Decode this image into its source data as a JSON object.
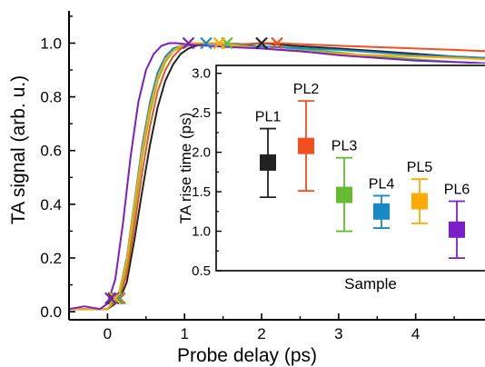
{
  "chart_data": [
    {
      "type": "line",
      "xlabel": "Probe delay (ps)",
      "ylabel": "TA signal (arb. u.)",
      "xlim": [
        -0.5,
        4.9
      ],
      "ylim": [
        -0.03,
        1.12
      ],
      "xticks": [
        0,
        1,
        2,
        3,
        4
      ],
      "yticks": [
        0.0,
        0.2,
        0.4,
        0.6,
        0.8,
        1.0
      ],
      "xtick_labels": [
        "0",
        "1",
        "2",
        "3",
        "4"
      ],
      "ytick_labels": [
        "0.0",
        "0.2",
        "0.4",
        "0.6",
        "0.8",
        "1.0"
      ],
      "grid": false,
      "series": [
        {
          "color": "#222222",
          "x": [
            -0.5,
            -0.2,
            0.0,
            0.15,
            0.25,
            0.35,
            0.45,
            0.55,
            0.65,
            0.75,
            0.85,
            0.95,
            1.05,
            1.15,
            1.3,
            1.5,
            1.8,
            2.0,
            2.4,
            3.0,
            3.5,
            4.0,
            4.5,
            4.9
          ],
          "y": [
            0.01,
            0.01,
            0.01,
            0.04,
            0.11,
            0.27,
            0.45,
            0.62,
            0.76,
            0.86,
            0.92,
            0.96,
            0.98,
            0.99,
            1.0,
            1.0,
            0.995,
            1.0,
            0.99,
            0.98,
            0.97,
            0.96,
            0.95,
            0.945
          ],
          "markers": [
            {
              "x": 2.0,
              "y": 1.0
            },
            {
              "x": 0.08,
              "y": 0.05
            }
          ]
        },
        {
          "color": "#f05020",
          "x": [
            -0.5,
            -0.2,
            0.0,
            0.15,
            0.25,
            0.35,
            0.45,
            0.55,
            0.65,
            0.75,
            0.85,
            0.95,
            1.05,
            1.2,
            1.4,
            1.7,
            2.0,
            2.2,
            2.6,
            3.0,
            3.5,
            4.0,
            4.5,
            4.9
          ],
          "y": [
            0.01,
            0.01,
            0.01,
            0.05,
            0.14,
            0.32,
            0.52,
            0.69,
            0.82,
            0.9,
            0.95,
            0.98,
            0.99,
            1.0,
            1.0,
            0.995,
            1.0,
            1.0,
            0.995,
            0.99,
            0.985,
            0.98,
            0.975,
            0.97
          ],
          "markers": [
            {
              "x": 2.2,
              "y": 1.0
            },
            {
              "x": 0.16,
              "y": 0.05
            }
          ]
        },
        {
          "color": "#66bb33",
          "x": [
            -0.5,
            -0.2,
            0.0,
            0.15,
            0.25,
            0.35,
            0.45,
            0.55,
            0.65,
            0.75,
            0.85,
            0.95,
            1.05,
            1.2,
            1.4,
            1.55,
            1.8,
            2.2,
            2.6,
            3.0,
            3.5,
            4.0,
            4.5,
            4.9
          ],
          "y": [
            0.01,
            0.01,
            0.01,
            0.06,
            0.17,
            0.37,
            0.58,
            0.74,
            0.86,
            0.93,
            0.97,
            0.985,
            0.99,
            1.0,
            1.0,
            1.0,
            0.99,
            0.985,
            0.975,
            0.965,
            0.95,
            0.94,
            0.93,
            0.925
          ],
          "markers": [
            {
              "x": 1.55,
              "y": 1.0
            },
            {
              "x": 0.14,
              "y": 0.05
            }
          ]
        },
        {
          "color": "#1888c8",
          "x": [
            -0.5,
            -0.2,
            0.0,
            0.15,
            0.25,
            0.35,
            0.45,
            0.55,
            0.65,
            0.75,
            0.85,
            0.95,
            1.1,
            1.25,
            1.5,
            1.8,
            2.2,
            2.6,
            3.0,
            3.5,
            4.0,
            4.5,
            4.9
          ],
          "y": [
            0.01,
            0.01,
            0.01,
            0.07,
            0.2,
            0.41,
            0.62,
            0.78,
            0.89,
            0.95,
            0.98,
            0.99,
            1.0,
            1.0,
            0.995,
            0.99,
            0.985,
            0.98,
            0.975,
            0.965,
            0.955,
            0.95,
            0.945
          ],
          "markers": [
            {
              "x": 1.28,
              "y": 1.0
            },
            {
              "x": 0.12,
              "y": 0.05
            }
          ]
        },
        {
          "color": "#ffaa00",
          "x": [
            -0.5,
            -0.2,
            0.0,
            0.15,
            0.25,
            0.35,
            0.45,
            0.55,
            0.65,
            0.75,
            0.85,
            0.95,
            1.1,
            1.3,
            1.45,
            1.7,
            2.0,
            2.4,
            3.0,
            3.5,
            4.0,
            4.5,
            4.9
          ],
          "y": [
            0.01,
            0.01,
            0.01,
            0.07,
            0.19,
            0.4,
            0.6,
            0.76,
            0.87,
            0.94,
            0.97,
            0.99,
            1.0,
            1.0,
            1.0,
            0.99,
            0.98,
            0.97,
            0.96,
            0.955,
            0.95,
            0.945,
            0.94
          ],
          "markers": [
            {
              "x": 1.45,
              "y": 1.0
            },
            {
              "x": 0.1,
              "y": 0.05
            }
          ]
        },
        {
          "color": "#7a1fc8",
          "x": [
            -0.5,
            -0.3,
            -0.1,
            0.0,
            0.1,
            0.2,
            0.3,
            0.4,
            0.5,
            0.6,
            0.7,
            0.8,
            0.9,
            1.05,
            1.3,
            1.6,
            2.0,
            2.5,
            3.0,
            3.5,
            4.0,
            4.5,
            4.9
          ],
          "y": [
            0.01,
            0.02,
            0.01,
            0.03,
            0.12,
            0.33,
            0.58,
            0.78,
            0.9,
            0.96,
            0.99,
            1.0,
            1.0,
            0.995,
            0.99,
            0.985,
            0.98,
            0.97,
            0.955,
            0.945,
            0.935,
            0.93,
            0.925
          ],
          "markers": [
            {
              "x": 1.05,
              "y": 1.0
            },
            {
              "x": 0.04,
              "y": 0.05
            }
          ]
        }
      ]
    },
    {
      "type": "scatter",
      "xlabel": "Sample",
      "ylabel": "TA rise time (ps)",
      "ylim": [
        0.5,
        3.1
      ],
      "yticks": [
        0.5,
        1.0,
        1.5,
        2.0,
        2.5,
        3.0
      ],
      "ytick_labels": [
        "0.5",
        "1.0",
        "1.5",
        "2.0",
        "2.5",
        "3.0"
      ],
      "categories": [
        "PL1",
        "PL2",
        "PL3",
        "PL4",
        "PL5",
        "PL6"
      ],
      "values": [
        1.87,
        2.08,
        1.46,
        1.25,
        1.38,
        1.02
      ],
      "error_low": [
        1.43,
        1.51,
        1.0,
        1.04,
        1.1,
        0.66
      ],
      "error_high": [
        2.3,
        2.65,
        1.93,
        1.45,
        1.66,
        1.38
      ],
      "colors": [
        "#222222",
        "#f05020",
        "#66bb33",
        "#1888c8",
        "#ffaa00",
        "#7a1fc8"
      ]
    }
  ]
}
